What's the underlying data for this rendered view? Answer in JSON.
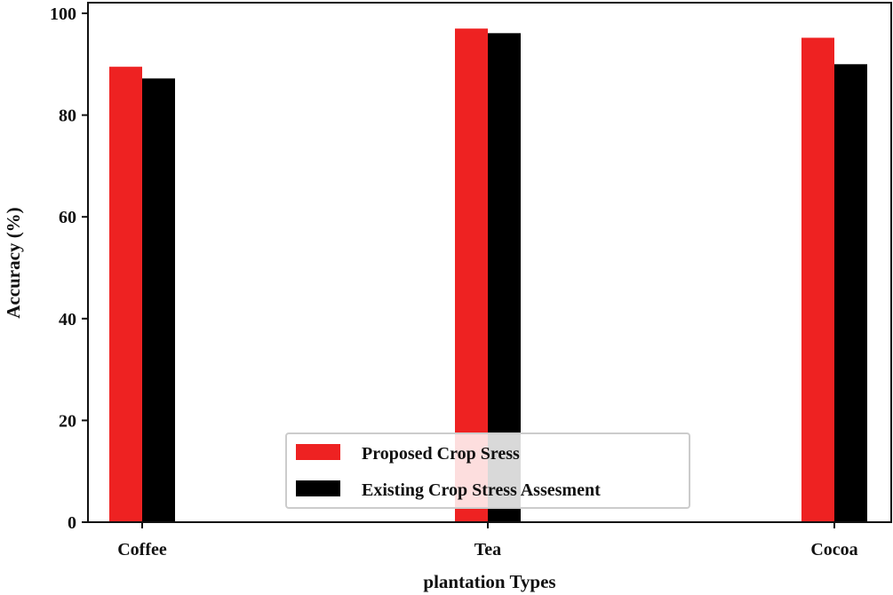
{
  "chart_data": {
    "type": "bar",
    "title": "",
    "xlabel": "plantation Types",
    "ylabel": "Accuracy (%)",
    "categories": [
      "Coffee",
      "Tea",
      "Cocoa"
    ],
    "series": [
      {
        "name": "Proposed Crop Sress",
        "color": "#ee2222",
        "values": [
          89.5,
          97,
          95.2
        ]
      },
      {
        "name": "Existing Crop Stress Assesment",
        "color": "#000000",
        "values": [
          87.2,
          96.1,
          90
        ]
      }
    ],
    "ylim": [
      0,
      100
    ],
    "yticks": [
      0,
      20,
      40,
      60,
      80,
      100
    ],
    "legend_position": "bottom-center",
    "grid": false
  }
}
